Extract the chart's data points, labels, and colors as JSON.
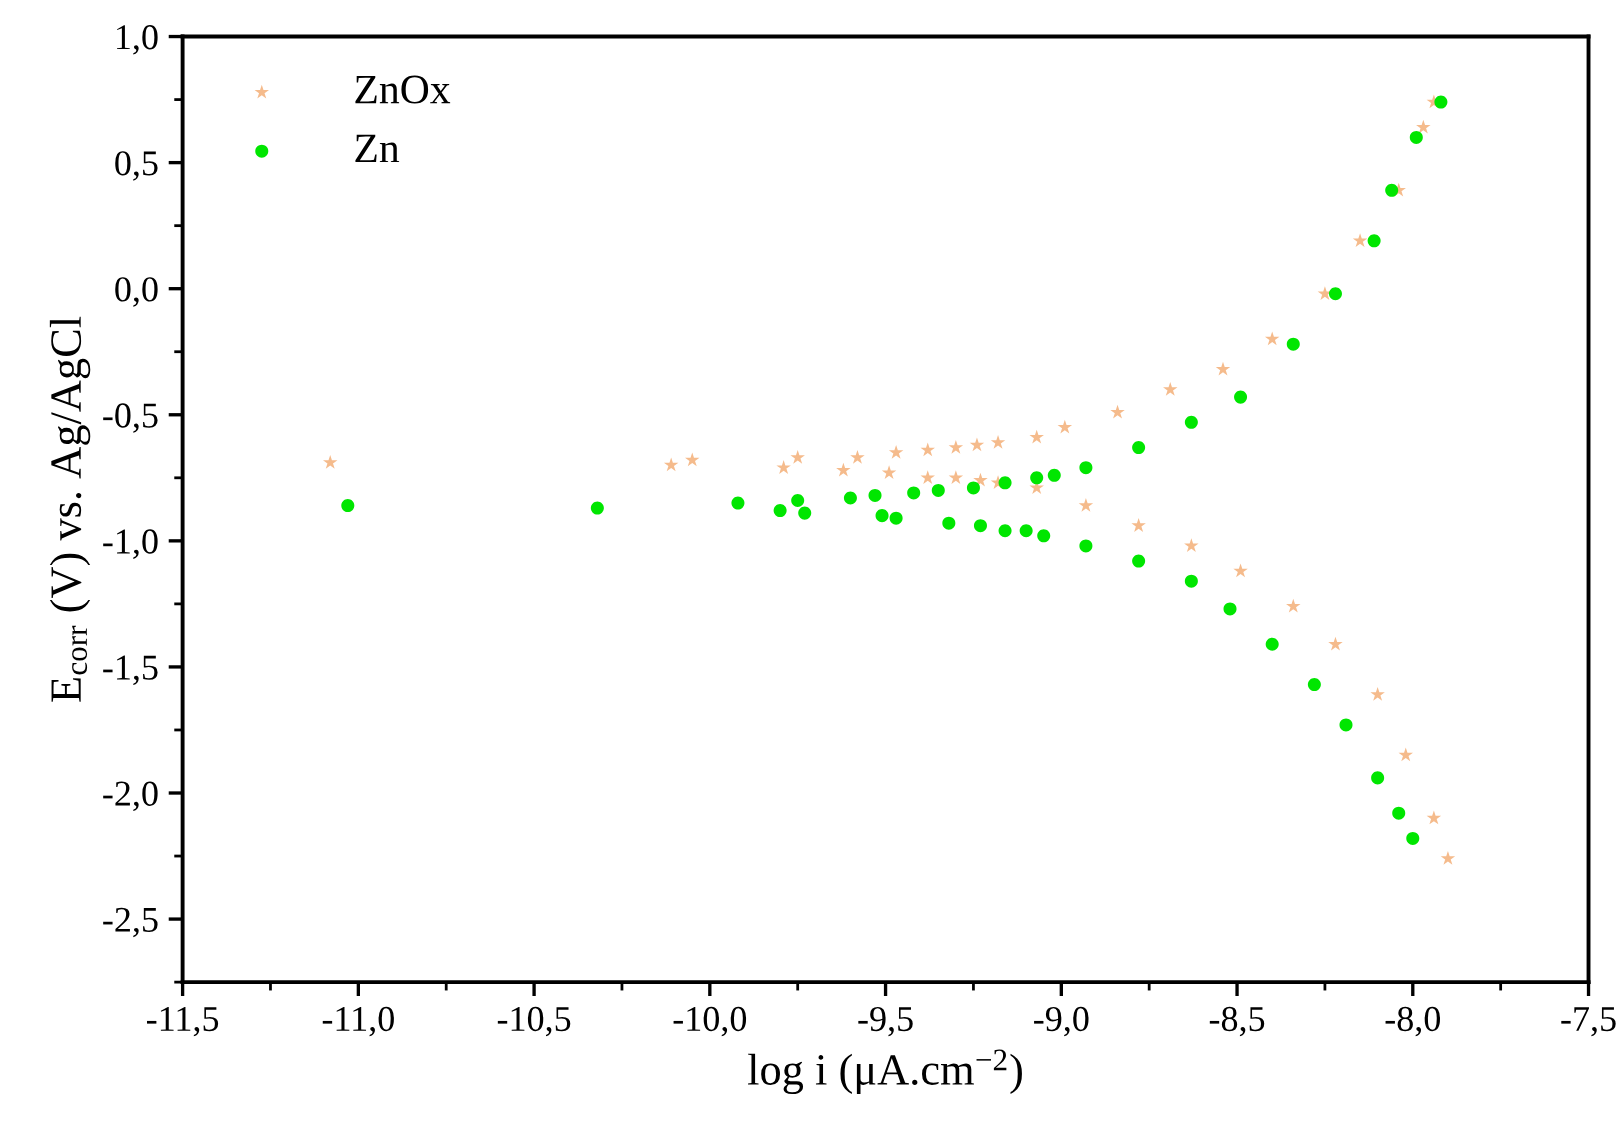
{
  "chart_data": {
    "type": "scatter",
    "xlabel": "log i (μA.cm$^{−2}$)",
    "ylabel": "E$_{corr}$ (V) vs. Ag/AgCl",
    "xlim": [
      -11.5,
      -7.5
    ],
    "ylim": [
      -2.75,
      1.0
    ],
    "xticks": [
      {
        "value": -11.5,
        "label": "-11,5"
      },
      {
        "value": -11.0,
        "label": "-11,0"
      },
      {
        "value": -10.5,
        "label": "-10,5"
      },
      {
        "value": -10.0,
        "label": "-10,0"
      },
      {
        "value": -9.5,
        "label": "-9,5"
      },
      {
        "value": -9.0,
        "label": "-9,0"
      },
      {
        "value": -8.5,
        "label": "-8,5"
      },
      {
        "value": -8.0,
        "label": "-8,0"
      },
      {
        "value": -7.5,
        "label": "-7,5"
      }
    ],
    "yticks": [
      {
        "value": -2.5,
        "label": "-2,5"
      },
      {
        "value": -2.0,
        "label": "-2,0"
      },
      {
        "value": -1.5,
        "label": "-1,5"
      },
      {
        "value": -1.0,
        "label": "-1,0"
      },
      {
        "value": -0.5,
        "label": "-0,5"
      },
      {
        "value": 0.0,
        "label": "0,0"
      },
      {
        "value": 0.5,
        "label": "0,5"
      },
      {
        "value": 1.0,
        "label": "1,0"
      }
    ],
    "grid": false,
    "legend": "top left",
    "series": [
      {
        "name": "ZnOx",
        "color": "#f5bb8c",
        "marker": "star",
        "x": [
          -11.08,
          -10.11,
          -10.05,
          -9.79,
          -9.75,
          -9.62,
          -9.58,
          -9.49,
          -9.47,
          -9.38,
          -9.38,
          -9.3,
          -9.3,
          -9.24,
          -9.23,
          -9.18,
          -9.18,
          -9.07,
          -8.99,
          -8.84,
          -8.69,
          -8.54,
          -8.4,
          -8.25,
          -8.15,
          -8.04,
          -7.97,
          -7.94,
          -9.07,
          -8.93,
          -8.78,
          -8.63,
          -8.49,
          -8.34,
          -8.22,
          -8.1,
          -8.02,
          -7.94,
          -7.9
        ],
        "values": [
          -0.69,
          -0.7,
          -0.68,
          -0.71,
          -0.67,
          -0.72,
          -0.67,
          -0.73,
          -0.65,
          -0.75,
          -0.64,
          -0.75,
          -0.63,
          -0.62,
          -0.76,
          -0.61,
          -0.77,
          -0.59,
          -0.55,
          -0.49,
          -0.4,
          -0.32,
          -0.2,
          -0.02,
          0.19,
          0.39,
          0.64,
          0.74,
          -0.79,
          -0.86,
          -0.94,
          -1.02,
          -1.12,
          -1.26,
          -1.41,
          -1.61,
          -1.85,
          -2.1,
          -2.26
        ]
      },
      {
        "name": "Zn",
        "color": "#00e600",
        "marker": "circle",
        "x": [
          -11.03,
          -10.32,
          -9.92,
          -9.8,
          -9.75,
          -9.73,
          -9.6,
          -9.53,
          -9.51,
          -9.47,
          -9.42,
          -9.35,
          -9.32,
          -9.25,
          -9.23,
          -9.16,
          -9.16,
          -9.1,
          -9.07,
          -9.02,
          -8.93,
          -8.78,
          -8.63,
          -8.49,
          -8.34,
          -8.22,
          -8.11,
          -8.06,
          -7.99,
          -7.92,
          -9.05,
          -8.93,
          -8.78,
          -8.63,
          -8.52,
          -8.4,
          -8.28,
          -8.19,
          -8.1,
          -8.04,
          -8.0
        ],
        "values": [
          -0.86,
          -0.87,
          -0.85,
          -0.88,
          -0.84,
          -0.89,
          -0.83,
          -0.82,
          -0.9,
          -0.91,
          -0.81,
          -0.8,
          -0.93,
          -0.79,
          -0.94,
          -0.77,
          -0.96,
          -0.96,
          -0.75,
          -0.74,
          -0.71,
          -0.63,
          -0.53,
          -0.43,
          -0.22,
          -0.02,
          0.19,
          0.39,
          0.6,
          0.74,
          -0.98,
          -1.02,
          -1.08,
          -1.16,
          -1.27,
          -1.41,
          -1.57,
          -1.73,
          -1.94,
          -2.08,
          -2.18
        ]
      }
    ]
  }
}
